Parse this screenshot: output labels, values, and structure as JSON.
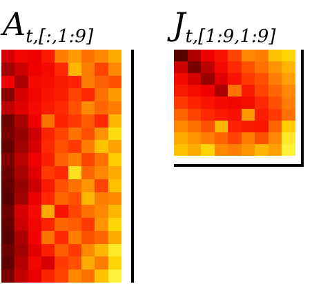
{
  "titles": {
    "a": {
      "main": "A",
      "sub": "t,[:,1:9]"
    },
    "j": {
      "main": "J",
      "sub": "t,[1:9,1:9]"
    }
  },
  "heatmaps": {
    "a": {
      "rows": 18,
      "cols": 9,
      "colormap": "hot",
      "values": [
        [
          0.3,
          0.38,
          0.35,
          0.48,
          0.7,
          0.75,
          0.68,
          0.72,
          0.78
        ],
        [
          0.2,
          0.28,
          0.35,
          0.4,
          0.55,
          0.8,
          0.7,
          0.6,
          0.72
        ],
        [
          0.35,
          0.22,
          0.4,
          0.42,
          0.48,
          0.52,
          0.7,
          0.65,
          0.62
        ],
        [
          0.15,
          0.3,
          0.38,
          0.45,
          0.5,
          0.6,
          0.55,
          0.68,
          0.75
        ],
        [
          0.25,
          0.32,
          0.4,
          0.48,
          0.55,
          0.62,
          0.72,
          0.66,
          0.7
        ],
        [
          0.1,
          0.22,
          0.35,
          0.68,
          0.52,
          0.58,
          0.64,
          0.55,
          0.8
        ],
        [
          0.12,
          0.18,
          0.28,
          0.52,
          0.6,
          0.68,
          0.62,
          0.74,
          0.88
        ],
        [
          0.08,
          0.2,
          0.3,
          0.55,
          0.62,
          0.58,
          0.7,
          0.82,
          0.76
        ],
        [
          0.14,
          0.25,
          0.36,
          0.5,
          0.65,
          0.7,
          0.6,
          0.68,
          0.84
        ],
        [
          0.1,
          0.22,
          0.32,
          0.58,
          0.55,
          0.9,
          0.66,
          0.72,
          0.78
        ],
        [
          0.08,
          0.18,
          0.28,
          0.48,
          0.62,
          0.68,
          0.74,
          0.6,
          0.82
        ],
        [
          0.06,
          0.2,
          0.34,
          0.55,
          0.66,
          0.62,
          0.8,
          0.7,
          0.72
        ],
        [
          0.1,
          0.3,
          0.4,
          0.78,
          0.45,
          0.6,
          0.68,
          0.72,
          0.8
        ],
        [
          0.08,
          0.28,
          0.38,
          0.52,
          0.66,
          0.64,
          0.58,
          0.74,
          0.86
        ],
        [
          0.06,
          0.22,
          0.36,
          0.68,
          0.55,
          0.7,
          0.62,
          0.66,
          0.78
        ],
        [
          0.1,
          0.2,
          0.32,
          0.5,
          0.64,
          0.58,
          0.72,
          0.8,
          0.92
        ],
        [
          0.07,
          0.24,
          0.38,
          0.3,
          0.58,
          0.62,
          0.78,
          0.7,
          0.86
        ],
        [
          0.12,
          0.26,
          0.34,
          0.52,
          0.6,
          0.72,
          0.68,
          0.82,
          0.95
        ]
      ]
    },
    "j": {
      "rows": 9,
      "cols": 9,
      "colormap": "hot",
      "values": [
        [
          0.05,
          0.22,
          0.35,
          0.45,
          0.6,
          0.72,
          0.7,
          0.82,
          0.86
        ],
        [
          0.28,
          0.12,
          0.25,
          0.4,
          0.55,
          0.62,
          0.68,
          0.74,
          0.8
        ],
        [
          0.4,
          0.3,
          0.18,
          0.32,
          0.45,
          0.58,
          0.62,
          0.7,
          0.76
        ],
        [
          0.48,
          0.42,
          0.35,
          0.22,
          0.68,
          0.48,
          0.6,
          0.66,
          0.72
        ],
        [
          0.58,
          0.52,
          0.45,
          0.4,
          0.38,
          0.42,
          0.55,
          0.62,
          0.7
        ],
        [
          0.66,
          0.6,
          0.55,
          0.48,
          0.44,
          0.75,
          0.5,
          0.58,
          0.68
        ],
        [
          0.72,
          0.68,
          0.62,
          0.8,
          0.52,
          0.48,
          0.46,
          0.66,
          0.84
        ],
        [
          0.78,
          0.74,
          0.7,
          0.66,
          0.6,
          0.7,
          0.62,
          0.72,
          0.92
        ],
        [
          0.82,
          0.78,
          0.86,
          0.72,
          0.7,
          0.74,
          0.8,
          0.76,
          0.95
        ]
      ]
    }
  }
}
